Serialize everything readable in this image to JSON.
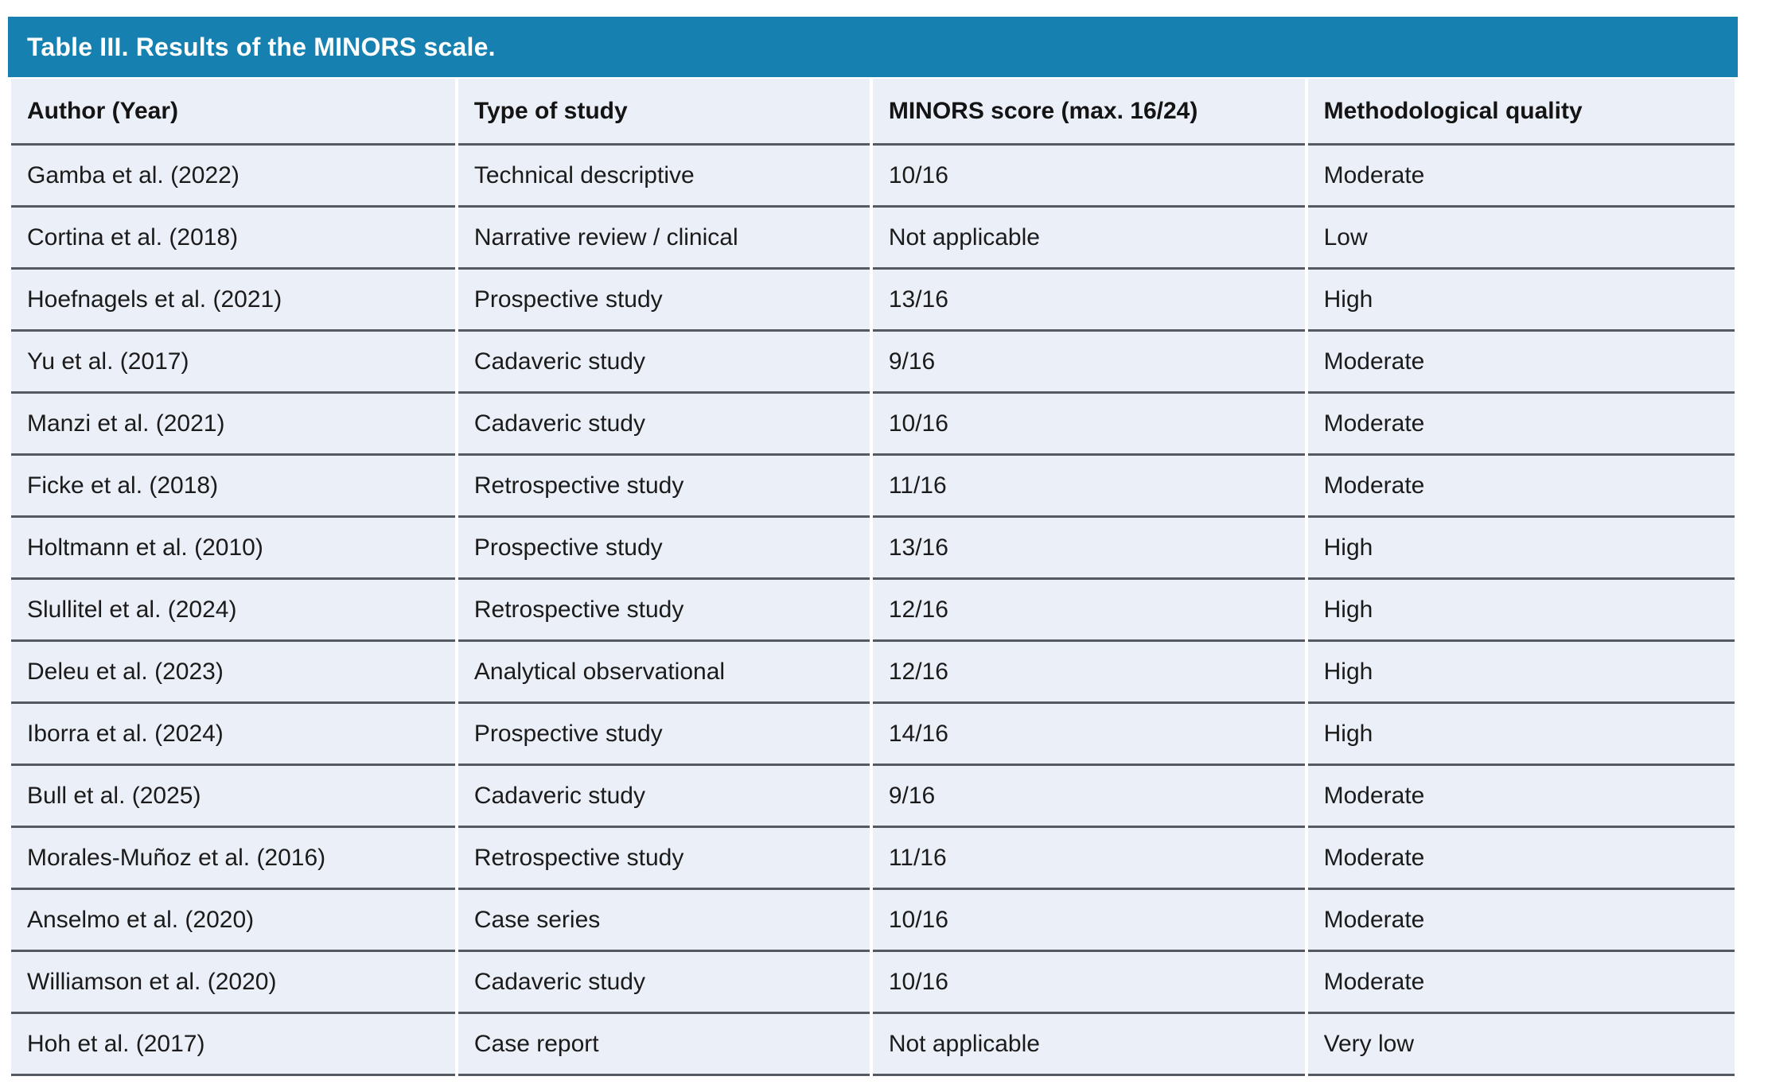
{
  "table": {
    "title": "Table III. Results of the MINORS scale.",
    "columns": [
      "Author (Year)",
      "Type of study",
      "MINORS score (max. 16/24)",
      "Methodological quality"
    ],
    "rows": [
      [
        "Gamba et al. (2022)",
        "Technical descriptive",
        "10/16",
        "Moderate"
      ],
      [
        "Cortina et al. (2018)",
        "Narrative review / clinical",
        "Not applicable",
        "Low"
      ],
      [
        "Hoefnagels et al. (2021)",
        "Prospective study",
        "13/16",
        "High"
      ],
      [
        "Yu et al. (2017)",
        "Cadaveric study",
        "9/16",
        "Moderate"
      ],
      [
        "Manzi et al. (2021)",
        "Cadaveric study",
        "10/16",
        "Moderate"
      ],
      [
        "Ficke et al. (2018)",
        "Retrospective study",
        "11/16",
        "Moderate"
      ],
      [
        "Holtmann et al. (2010)",
        "Prospective study",
        "13/16",
        "High"
      ],
      [
        "Slullitel et al. (2024)",
        "Retrospective study",
        "12/16",
        "High"
      ],
      [
        "Deleu et al. (2023)",
        "Analytical observational",
        "12/16",
        "High"
      ],
      [
        "Iborra et al. (2024)",
        "Prospective study",
        "14/16",
        "High"
      ],
      [
        "Bull et al. (2025)",
        "Cadaveric study",
        "9/16",
        "Moderate"
      ],
      [
        "Morales-Muñoz et al. (2016)",
        "Retrospective study",
        "11/16",
        "Moderate"
      ],
      [
        "Anselmo et al. (2020)",
        "Case series",
        "10/16",
        "Moderate"
      ],
      [
        "Williamson et al. (2020)",
        "Cadaveric study",
        "10/16",
        "Moderate"
      ],
      [
        "Hoh et al. (2017)",
        "Case report",
        "Not applicable",
        "Very low"
      ]
    ],
    "colors": {
      "title_bar": "#1681b0",
      "title_text": "#ffffff",
      "row_background": "#ebeff8",
      "row_border": "#545a62",
      "body_text": "#1b1b1b"
    }
  },
  "chart_data": {
    "type": "table",
    "title": "Table III. Results of the MINORS scale.",
    "columns": [
      "Author (Year)",
      "Type of study",
      "MINORS score (max. 16/24)",
      "Methodological quality"
    ],
    "rows": [
      [
        "Gamba et al. (2022)",
        "Technical descriptive",
        "10/16",
        "Moderate"
      ],
      [
        "Cortina et al. (2018)",
        "Narrative review / clinical",
        "Not applicable",
        "Low"
      ],
      [
        "Hoefnagels et al. (2021)",
        "Prospective study",
        "13/16",
        "High"
      ],
      [
        "Yu et al. (2017)",
        "Cadaveric study",
        "9/16",
        "Moderate"
      ],
      [
        "Manzi et al. (2021)",
        "Cadaveric study",
        "10/16",
        "Moderate"
      ],
      [
        "Ficke et al. (2018)",
        "Retrospective study",
        "11/16",
        "Moderate"
      ],
      [
        "Holtmann et al. (2010)",
        "Prospective study",
        "13/16",
        "High"
      ],
      [
        "Slullitel et al. (2024)",
        "Retrospective study",
        "12/16",
        "High"
      ],
      [
        "Deleu et al. (2023)",
        "Analytical observational",
        "12/16",
        "High"
      ],
      [
        "Iborra et al. (2024)",
        "Prospective study",
        "14/16",
        "High"
      ],
      [
        "Bull et al. (2025)",
        "Cadaveric study",
        "9/16",
        "Moderate"
      ],
      [
        "Morales-Muñoz et al. (2016)",
        "Retrospective study",
        "11/16",
        "Moderate"
      ],
      [
        "Anselmo et al. (2020)",
        "Case series",
        "10/16",
        "Moderate"
      ],
      [
        "Williamson et al. (2020)",
        "Cadaveric study",
        "10/16",
        "Moderate"
      ],
      [
        "Hoh et al. (2017)",
        "Case report",
        "Not applicable",
        "Very low"
      ]
    ]
  }
}
